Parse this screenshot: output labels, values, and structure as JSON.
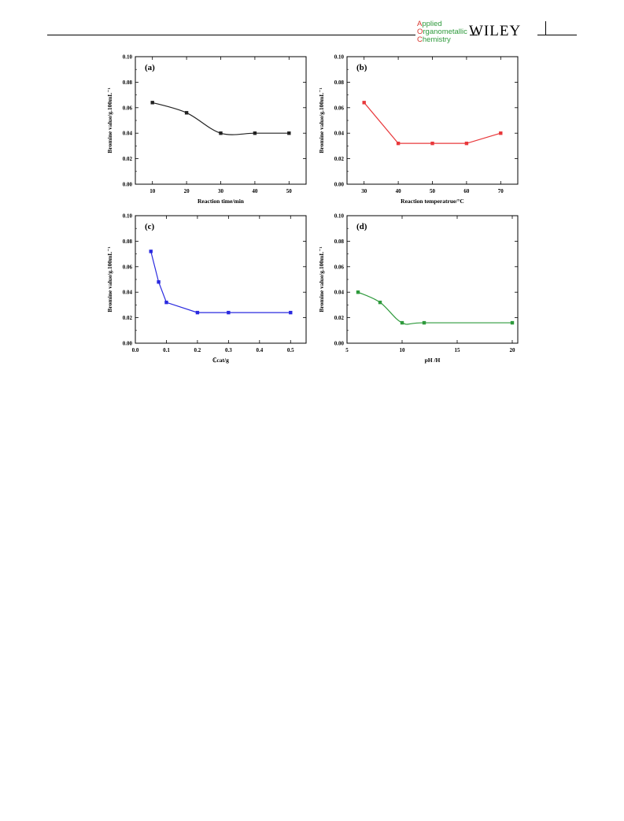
{
  "header": {
    "journal": {
      "line1_cap": "A",
      "line1_rest": "pplied",
      "line2_cap": "O",
      "line2_rest": "rganometallic",
      "line3_cap": "C",
      "line3_rest": "hemistry"
    },
    "publisher": "WILEY"
  },
  "chart_data": [
    {
      "type": "line",
      "panel_label": "(a)",
      "title": "",
      "xlabel": "Reaction time/min",
      "ylabel": "Bromine value/g.100mL⁻¹",
      "xlim": [
        5,
        55
      ],
      "ylim": [
        0,
        0.1
      ],
      "xticks": [
        10,
        20,
        30,
        40,
        50
      ],
      "xtick_labels": [
        "10",
        "20",
        "30",
        "40",
        "50"
      ],
      "yticks": [
        0,
        0.02,
        0.04,
        0.06,
        0.08,
        0.1
      ],
      "ytick_labels": [
        "0.00",
        "0.02",
        "0.04",
        "0.06",
        "0.08",
        "0.10"
      ],
      "smooth": true,
      "color": "#222222",
      "series": [
        {
          "x": [
            10,
            20,
            30,
            40,
            50
          ],
          "y": [
            0.064,
            0.056,
            0.04,
            0.04,
            0.04
          ]
        }
      ]
    },
    {
      "type": "line",
      "panel_label": "(b)",
      "title": "",
      "xlabel": "Reaction temperatrue/°C",
      "ylabel": "Bromine value/g.100mL⁻¹",
      "xlim": [
        25,
        75
      ],
      "ylim": [
        0,
        0.1
      ],
      "xticks": [
        30,
        40,
        50,
        60,
        70
      ],
      "xtick_labels": [
        "30",
        "40",
        "50",
        "60",
        "70"
      ],
      "yticks": [
        0,
        0.02,
        0.04,
        0.06,
        0.08,
        0.1
      ],
      "ytick_labels": [
        "0.00",
        "0.02",
        "0.04",
        "0.06",
        "0.08",
        "0.10"
      ],
      "smooth": false,
      "color": "#e8383b",
      "series": [
        {
          "x": [
            30,
            40,
            50,
            60,
            70
          ],
          "y": [
            0.064,
            0.032,
            0.032,
            0.032,
            0.04
          ]
        }
      ]
    },
    {
      "type": "line",
      "panel_label": "(c)",
      "title": "",
      "xlabel": "ℂcat/g",
      "ylabel": "Bromine value/g.100mL⁻¹",
      "xlim": [
        0,
        0.55
      ],
      "ylim": [
        0,
        0.1
      ],
      "xticks": [
        0,
        0.1,
        0.2,
        0.3,
        0.4,
        0.5
      ],
      "xtick_labels": [
        "0.0",
        "0.1",
        "0.2",
        "0.3",
        "0.4",
        "0.5"
      ],
      "yticks": [
        0,
        0.02,
        0.04,
        0.06,
        0.08,
        0.1
      ],
      "ytick_labels": [
        "0.00",
        "0.02",
        "0.04",
        "0.06",
        "0.08",
        "0.10"
      ],
      "smooth": false,
      "color": "#2a2adf",
      "series": [
        {
          "x": [
            0.05,
            0.075,
            0.1,
            0.2,
            0.3,
            0.5
          ],
          "y": [
            0.072,
            0.048,
            0.032,
            0.024,
            0.024,
            0.024
          ]
        }
      ]
    },
    {
      "type": "line",
      "panel_label": "(d)",
      "title": "",
      "xlabel": "pH /H",
      "ylabel": "Bromine value/g.100mL⁻¹",
      "xlim": [
        5,
        20.5
      ],
      "ylim": [
        0,
        0.1
      ],
      "xticks": [
        5,
        10,
        15,
        20
      ],
      "xtick_labels": [
        "5",
        "10",
        "15",
        "20"
      ],
      "yticks": [
        0,
        0.02,
        0.04,
        0.06,
        0.08,
        0.1
      ],
      "ytick_labels": [
        "0.00",
        "0.02",
        "0.04",
        "0.06",
        "0.08",
        "0.10"
      ],
      "smooth": true,
      "color": "#2e9a3c",
      "series": [
        {
          "x": [
            6,
            8,
            10,
            12,
            20
          ],
          "y": [
            0.04,
            0.032,
            0.016,
            0.016,
            0.016
          ]
        }
      ]
    }
  ]
}
